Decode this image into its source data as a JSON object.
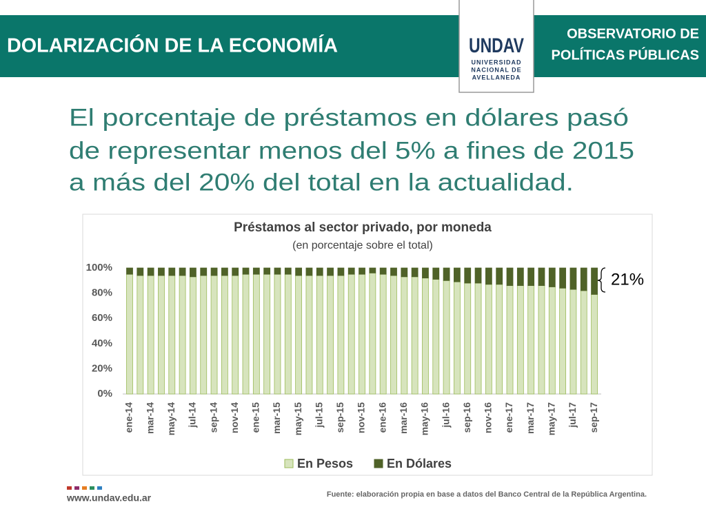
{
  "header": {
    "title": "DOLARIZACIÓN DE LA ECONOMÍA",
    "org": [
      "OBSERVATORIO DE",
      "POLÍTICAS PÚBLICAS"
    ],
    "logo": {
      "mark": "UNDAV",
      "lines": [
        "UNIVERSIDAD",
        "NACIONAL DE",
        "AVELLANEDA"
      ]
    }
  },
  "headline": [
    "El porcentaje de préstamos en dólares pasó",
    "de representar menos del 5% a fines de 2015",
    "a más del 20% del total en la actualidad."
  ],
  "chart_data": {
    "type": "bar",
    "stacked": true,
    "title": "Préstamos  al sector privado,  por moneda",
    "subtitle": "(en porcentaje sobre el total)",
    "categories": [
      "ene-14",
      null,
      "mar-14",
      null,
      "may-14",
      null,
      "jul-14",
      null,
      "sep-14",
      null,
      "nov-14",
      null,
      "ene-15",
      null,
      "mar-15",
      null,
      "may-15",
      null,
      "jul-15",
      null,
      "sep-15",
      null,
      "nov-15",
      null,
      "ene-16",
      null,
      "mar-16",
      null,
      "may-16",
      null,
      "jul-16",
      null,
      "sep-16",
      null,
      "nov-16",
      null,
      "ene-17",
      null,
      "mar-17",
      null,
      "may-17",
      null,
      "jul-17",
      null,
      "sep-17"
    ],
    "series": [
      {
        "name": "En Pesos",
        "color": "#d7e4bd",
        "values": [
          95,
          94,
          94,
          94,
          94,
          94,
          93,
          94,
          94,
          94,
          94,
          95,
          95,
          95,
          95,
          95,
          94,
          94,
          94,
          94,
          94,
          95,
          95,
          96,
          95,
          94,
          93,
          93,
          92,
          91,
          90,
          89,
          88,
          88,
          87,
          87,
          86,
          86,
          86,
          86,
          85,
          84,
          83,
          82,
          79
        ]
      },
      {
        "name": "En Dólares",
        "color": "#4f6228",
        "values": [
          5,
          6,
          6,
          6,
          6,
          6,
          7,
          6,
          6,
          6,
          6,
          5,
          5,
          5,
          5,
          5,
          6,
          6,
          6,
          6,
          6,
          5,
          5,
          4,
          5,
          6,
          7,
          7,
          8,
          9,
          10,
          11,
          12,
          12,
          13,
          13,
          14,
          14,
          14,
          14,
          15,
          16,
          17,
          18,
          21
        ]
      }
    ],
    "ylim": [
      0,
      100
    ],
    "yticks": [
      {
        "value": 0,
        "label": "0%"
      },
      {
        "value": 20,
        "label": "20%"
      },
      {
        "value": 40,
        "label": "40%"
      },
      {
        "value": 60,
        "label": "60%"
      },
      {
        "value": 80,
        "label": "80%"
      },
      {
        "value": 100,
        "label": "100%"
      }
    ],
    "annotation": "21%",
    "legend": "bottom"
  },
  "footer": {
    "url": "www.undav.edu.ar",
    "source": "Fuente: elaboración propia en base a datos del Banco Central de la República Argentina."
  }
}
